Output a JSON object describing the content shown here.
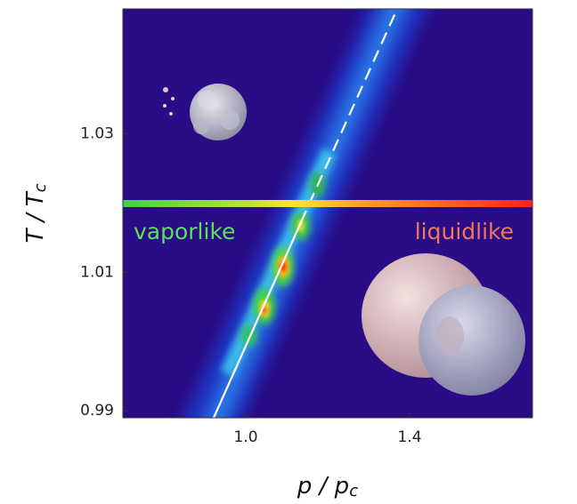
{
  "chart_data": {
    "type": "heatmap",
    "xlabel": {
      "text": "p / p",
      "subscript": "c"
    },
    "ylabel": {
      "text": "T / T",
      "subscript": "c"
    },
    "xlim": [
      0.7,
      1.7
    ],
    "ylim": [
      0.989,
      1.048
    ],
    "xticks": [
      {
        "value": 1,
        "label": "1.0"
      },
      1.4
    ],
    "yticks": [
      0.99,
      1.01,
      1.03
    ],
    "annotations": [
      {
        "text": "vaporlike",
        "color": "#5ee05a"
      },
      {
        "text": "liquidlike",
        "color": "#f0785c"
      }
    ]
  }
}
